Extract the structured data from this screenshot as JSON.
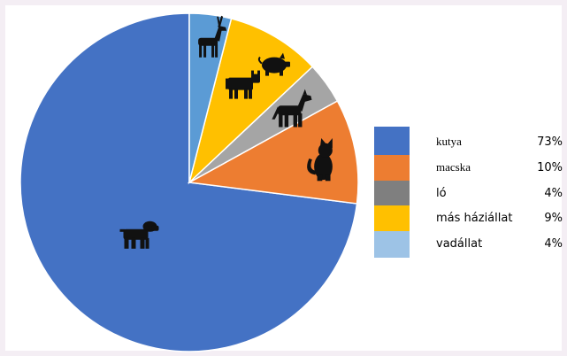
{
  "chart_data": {
    "type": "pie",
    "title": "",
    "slices": [
      {
        "label": "kutya",
        "value": 73,
        "percent_label": "73%",
        "color": "#4472c4",
        "icon": "dog-icon"
      },
      {
        "label": "macska",
        "value": 10,
        "percent_label": "10%",
        "color": "#ed7d31",
        "icon": "cat-icon"
      },
      {
        "label": "ló",
        "value": 4,
        "percent_label": "4%",
        "color": "#a5a5a5",
        "icon": "horse-icon"
      },
      {
        "label": "más háziállat",
        "value": 9,
        "percent_label": "9%",
        "color": "#ffc000",
        "icon": "cow-and-pig-icon"
      },
      {
        "label": "vadállat",
        "value": 4,
        "percent_label": "4%",
        "color": "#5b9bd5",
        "icon": "deer-icon"
      }
    ],
    "start_angle_deg": 0,
    "direction": "counterclockwise",
    "legend_position": "right"
  }
}
